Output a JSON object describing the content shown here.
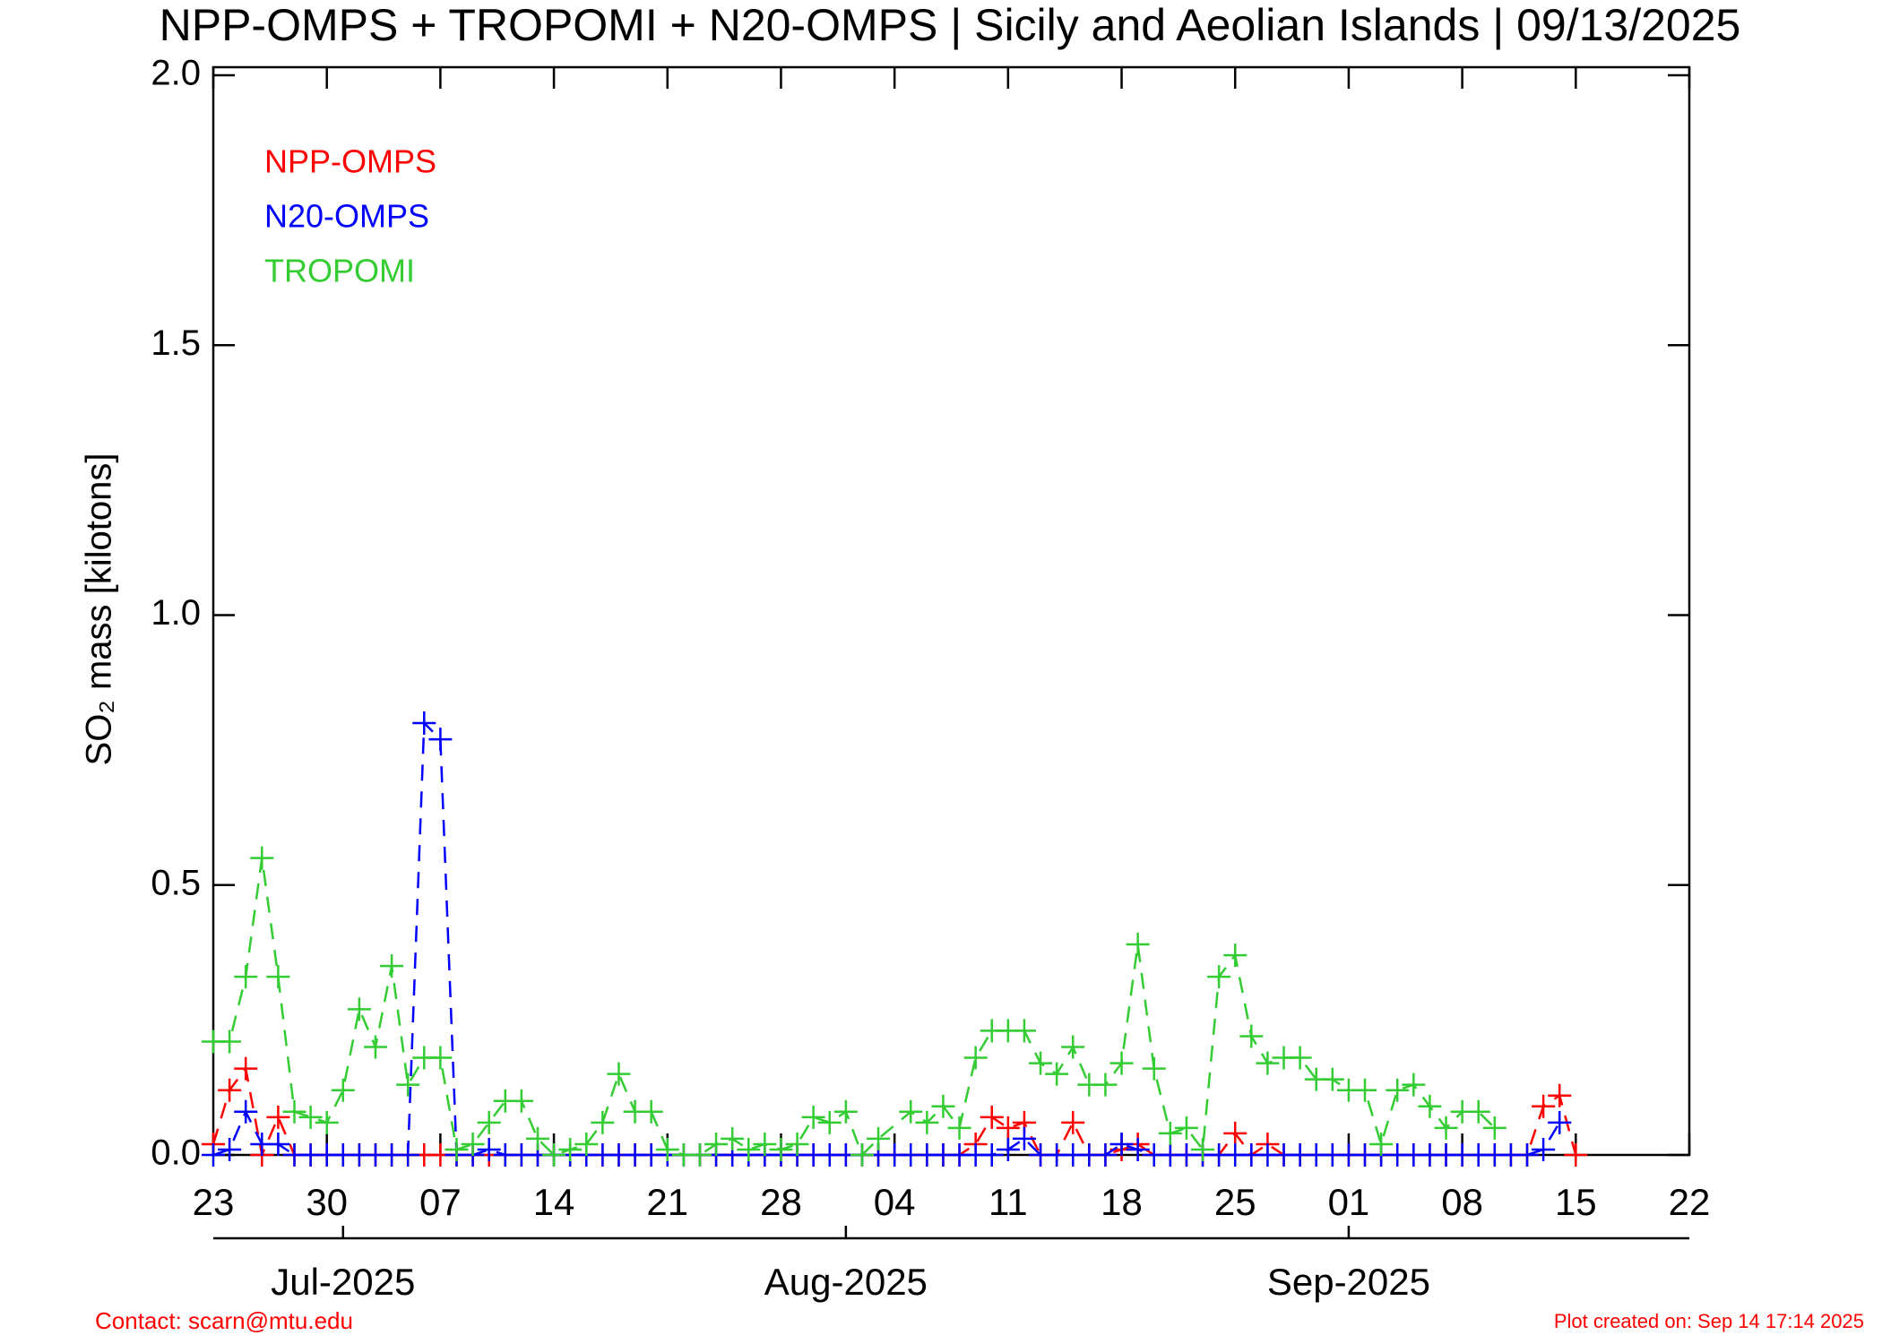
{
  "chart_data": {
    "type": "line",
    "title": "NPP-OMPS + TROPOMI + N20-OMPS | Sicily and Aeolian Islands | 09/13/2025",
    "y_label": "SO₂ mass [kilotons]",
    "ylim": [
      0,
      2
    ],
    "yticks": [
      {
        "value": 0,
        "label": "0.0"
      },
      {
        "value": 0.5,
        "label": "0.5"
      },
      {
        "value": 1,
        "label": "1.0"
      },
      {
        "value": 1.5,
        "label": "1.5"
      },
      {
        "value": 2,
        "label": "2.0"
      }
    ],
    "xlim": [
      0,
      91
    ],
    "xticks": [
      {
        "value": 0,
        "label": "23"
      },
      {
        "value": 7,
        "label": "30"
      },
      {
        "value": 14,
        "label": "07"
      },
      {
        "value": 21,
        "label": "14"
      },
      {
        "value": 28,
        "label": "21"
      },
      {
        "value": 35,
        "label": "28"
      },
      {
        "value": 42,
        "label": "04"
      },
      {
        "value": 49,
        "label": "11"
      },
      {
        "value": 56,
        "label": "18"
      },
      {
        "value": 63,
        "label": "25"
      },
      {
        "value": 70,
        "label": "01"
      },
      {
        "value": 77,
        "label": "08"
      },
      {
        "value": 84,
        "label": "15"
      },
      {
        "value": 91,
        "label": "22"
      }
    ],
    "month_ticks": [
      {
        "value": 8,
        "label": "Jul-2025"
      },
      {
        "value": 39,
        "label": "Aug-2025"
      },
      {
        "value": 70,
        "label": "Sep-2025"
      }
    ],
    "legend": "upper left",
    "series": [
      {
        "name": "NPP-OMPS",
        "color": "#ff0000",
        "x": [
          0,
          1,
          2,
          3,
          4,
          5,
          6,
          7,
          8,
          9,
          10,
          11,
          12,
          13,
          14,
          15,
          16,
          17,
          18,
          19,
          20,
          21,
          22,
          23,
          24,
          25,
          26,
          27,
          28,
          29,
          30,
          31,
          32,
          33,
          34,
          35,
          36,
          37,
          38,
          39,
          40,
          41,
          42,
          43,
          44,
          45,
          46,
          47,
          48,
          49,
          50,
          51,
          52,
          53,
          54,
          55,
          56,
          57,
          58,
          59,
          60,
          61,
          62,
          63,
          64,
          65,
          66,
          67,
          68,
          69,
          70,
          71,
          72,
          73,
          74,
          75,
          76,
          77,
          78,
          79,
          80,
          81,
          82,
          83,
          84
        ],
        "values": [
          0.02,
          0.12,
          0.16,
          0,
          0.07,
          0,
          0,
          0,
          0,
          0,
          0,
          0,
          0,
          0,
          0,
          0,
          0,
          0,
          0,
          0,
          0,
          0,
          0,
          0,
          0,
          0,
          0,
          0,
          0,
          0,
          0,
          0,
          0,
          0,
          0,
          0,
          0,
          0,
          0,
          0,
          0,
          0,
          0,
          0,
          0,
          0,
          0,
          0.02,
          0.07,
          0.05,
          0.06,
          0,
          0,
          0.06,
          0,
          0,
          0.01,
          0.02,
          0,
          0,
          0,
          0,
          0,
          0.04,
          0,
          0.02,
          0,
          0,
          0,
          0,
          0,
          0,
          0,
          0,
          0,
          0,
          0,
          0,
          0,
          0,
          0,
          0,
          0.09,
          0.11,
          0
        ]
      },
      {
        "name": "N20-OMPS",
        "color": "#0000ff",
        "x": [
          0,
          1,
          2,
          3,
          4,
          5,
          6,
          7,
          8,
          9,
          10,
          11,
          12,
          13,
          14,
          15,
          16,
          17,
          18,
          19,
          20,
          21,
          22,
          23,
          24,
          25,
          26,
          27,
          28,
          29,
          30,
          31,
          32,
          33,
          34,
          35,
          36,
          37,
          38,
          39,
          40,
          41,
          42,
          43,
          44,
          45,
          46,
          47,
          48,
          49,
          50,
          51,
          52,
          53,
          54,
          55,
          56,
          57,
          58,
          59,
          60,
          61,
          62,
          63,
          64,
          65,
          66,
          67,
          68,
          69,
          70,
          71,
          72,
          73,
          74,
          75,
          76,
          77,
          78,
          79,
          80,
          81,
          82,
          83
        ],
        "values": [
          0,
          0.01,
          0.08,
          0.02,
          0.02,
          0,
          0,
          0,
          0,
          0,
          0,
          0,
          0,
          0.8,
          0.77,
          0,
          0,
          0.01,
          0,
          0,
          0,
          0,
          0,
          0,
          0,
          0,
          0,
          0,
          0,
          0,
          0,
          0,
          0,
          0,
          0,
          0,
          0,
          0,
          0,
          0,
          0,
          0,
          0,
          0,
          0,
          0,
          0,
          0,
          0,
          0.01,
          0.03,
          0,
          0,
          0,
          0,
          0,
          0.02,
          0.01,
          0,
          0,
          0,
          0,
          0,
          0,
          0,
          0,
          0,
          0,
          0,
          0,
          0,
          0,
          0,
          0,
          0,
          0,
          0,
          0,
          0,
          0,
          0,
          0,
          0.01,
          0.06
        ]
      },
      {
        "name": "TROPOMI",
        "color": "#33cc33",
        "x": [
          0,
          1,
          2,
          3,
          4,
          5,
          6,
          7,
          8,
          9,
          10,
          11,
          12,
          13,
          14,
          15,
          16,
          17,
          18,
          19,
          20,
          21,
          22,
          23,
          24,
          25,
          26,
          27,
          28,
          29,
          30,
          31,
          32,
          33,
          34,
          35,
          36,
          37,
          38,
          39,
          40,
          41,
          43,
          44,
          45,
          46,
          47,
          48,
          49,
          50,
          51,
          52,
          53,
          54,
          55,
          56,
          57,
          58,
          59,
          60,
          61,
          62,
          63,
          64,
          65,
          66,
          67,
          68,
          69,
          70,
          71,
          72,
          73,
          74,
          75,
          76,
          77,
          78,
          79
        ],
        "values": [
          0.21,
          0.21,
          0.33,
          0.55,
          0.33,
          0.08,
          0.07,
          0.06,
          0.12,
          0.27,
          0.2,
          0.35,
          0.13,
          0.18,
          0.18,
          0.01,
          0.02,
          0.06,
          0.1,
          0.1,
          0.03,
          0,
          0.01,
          0.02,
          0.06,
          0.15,
          0.08,
          0.08,
          0.01,
          0,
          0,
          0.02,
          0.03,
          0.01,
          0.02,
          0.01,
          0.02,
          0.07,
          0.06,
          0.08,
          0,
          0.03,
          0.08,
          0.06,
          0.09,
          0.05,
          0.18,
          0.23,
          0.23,
          0.23,
          0.17,
          0.15,
          0.2,
          0.13,
          0.13,
          0.17,
          0.39,
          0.16,
          0.04,
          0.05,
          0.01,
          0.33,
          0.37,
          0.22,
          0.17,
          0.18,
          0.18,
          0.14,
          0.14,
          0.12,
          0.12,
          0.02,
          0.12,
          0.13,
          0.09,
          0.05,
          0.08,
          0.08,
          0.05
        ]
      }
    ],
    "contact": "Contact: scarn@mtu.edu",
    "created": "Plot created on: Sep 14 17:14 2025"
  }
}
